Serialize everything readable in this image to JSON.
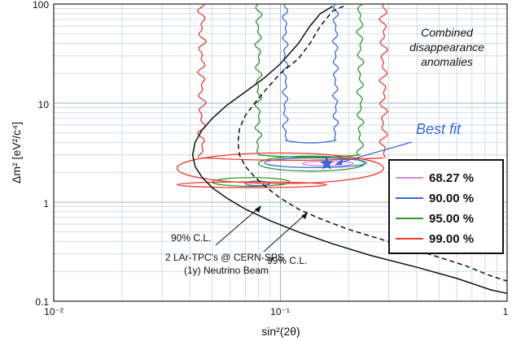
{
  "chart_data": {
    "type": "line",
    "title": "",
    "xlabel": "sin²(2θ)",
    "ylabel": "Δm² [eV²/c⁴]",
    "xscale": "log",
    "yscale": "log",
    "xlim": [
      0.01,
      1
    ],
    "ylim": [
      0.1,
      100
    ],
    "x_ticks": [
      "10⁻²",
      "10⁻¹",
      "1"
    ],
    "y_ticks": [
      "0.1",
      "1",
      "10",
      "100"
    ],
    "grid": true,
    "legend": {
      "placement": "right",
      "entries": [
        {
          "label": "68.27 %",
          "color": "#d58ae0"
        },
        {
          "label": "90.00 %",
          "color": "#3a66e8"
        },
        {
          "label": "95.00 %",
          "color": "#2a9a2a"
        },
        {
          "label": "99.00 %",
          "color": "#ec3b2f"
        }
      ]
    },
    "annotations": {
      "combined_line1": "Combined",
      "combined_line2": "disappearance",
      "combined_line3": "anomalies",
      "best_fit": "Best fit",
      "cl90": "90% C.L.",
      "cl99": "99% C.L.",
      "exp_line1": "2 LAr-TPC's @ CERN-SPS",
      "exp_line2": "(1y) Neutrino Beam"
    },
    "best_fit_point": {
      "x": 0.16,
      "y": 2.45
    },
    "sensitivity_90": {
      "name": "90% C.L.",
      "x": [
        0.17,
        0.15,
        0.135,
        0.12,
        0.1,
        0.085,
        0.07,
        0.058,
        0.05,
        0.045,
        0.042,
        0.041,
        0.042,
        0.045,
        0.05,
        0.058,
        0.07,
        0.09,
        0.12,
        0.17,
        0.25,
        0.4,
        0.6,
        0.85,
        1.0
      ],
      "y": [
        95,
        80,
        60,
        40,
        25,
        18,
        13,
        9.5,
        7,
        5.3,
        4.0,
        3.0,
        2.3,
        1.8,
        1.4,
        1.1,
        0.85,
        0.65,
        0.5,
        0.38,
        0.29,
        0.22,
        0.17,
        0.13,
        0.12
      ]
    },
    "sensitivity_99": {
      "name": "99% C.L.",
      "x": [
        0.19,
        0.17,
        0.15,
        0.135,
        0.12,
        0.1,
        0.087,
        0.077,
        0.07,
        0.066,
        0.065,
        0.066,
        0.07,
        0.077,
        0.087,
        0.1,
        0.12,
        0.15,
        0.2,
        0.3,
        0.45,
        0.65,
        0.85,
        1.0
      ],
      "y": [
        95,
        85,
        60,
        40,
        28,
        20,
        14,
        10,
        7.5,
        5.5,
        4.0,
        3.0,
        2.3,
        1.8,
        1.4,
        1.1,
        0.85,
        0.68,
        0.53,
        0.4,
        0.3,
        0.23,
        0.18,
        0.16
      ]
    },
    "contours": [
      {
        "name": "68.27 %",
        "color": "#d58ae0",
        "x_left": 0.125,
        "x_right": 0.21,
        "y_center": 2.45,
        "y_half": 0.13
      },
      {
        "name": "90.00 %",
        "color": "#3a66e8",
        "x_left": 0.105,
        "x_right": 0.175,
        "y_top": 100,
        "y_bottom": 4.2,
        "blobs": [
          {
            "x_left": 0.085,
            "x_right": 0.24,
            "y_center": 2.5,
            "y_half": 0.28
          },
          {
            "x_left": 0.07,
            "x_right": 0.09,
            "y_center": 1.55,
            "y_half": 0.08
          }
        ]
      },
      {
        "name": "95.00 %",
        "color": "#2a9a2a",
        "x_left": 0.08,
        "x_right": 0.225,
        "y_top": 100,
        "y_bottom": 3.0,
        "blobs": [
          {
            "x_left": 0.08,
            "x_right": 0.235,
            "y_center": 2.45,
            "y_half": 0.42
          },
          {
            "x_left": 0.05,
            "x_right": 0.11,
            "y_center": 1.6,
            "y_half": 0.16
          }
        ]
      },
      {
        "name": "99.00 %",
        "color": "#ec3b2f",
        "x_left": 0.045,
        "x_right": 0.285,
        "y_top": 100,
        "y_bottom": 2.8,
        "blobs": [
          {
            "x_left": 0.035,
            "x_right": 0.285,
            "y_center": 2.2,
            "y_half": 0.75
          },
          {
            "x_left": 0.035,
            "x_right": 0.16,
            "y_center": 1.5,
            "y_half": 0.1
          }
        ]
      }
    ]
  }
}
